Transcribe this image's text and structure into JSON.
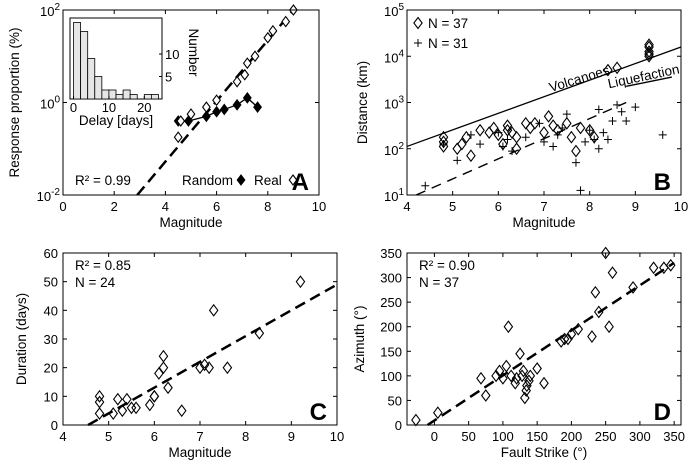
{
  "colors": {
    "ink": "#000000",
    "inset_bar": "#e6e6e6",
    "background": "#ffffff"
  },
  "chart_data": [
    {
      "panel": "A",
      "type": "scatter",
      "xlabel": "Magnitude",
      "ylabel": "Response proportion (%)",
      "xlim": [
        0,
        10
      ],
      "ylim_log10": [
        -2,
        2
      ],
      "yscale": "log",
      "xticks": [
        "0",
        "2",
        "4",
        "6",
        "8",
        "10"
      ],
      "ytick_bases": [
        "10",
        "10",
        "10"
      ],
      "ytick_exps": [
        "-2",
        "0",
        "2"
      ],
      "annotation": "R² = 0.99",
      "legend": [
        {
          "label": "Random",
          "marker": "filled-diamond"
        },
        {
          "label": "Real",
          "marker": "open-diamond"
        }
      ],
      "series": [
        {
          "name": "Real",
          "marker": "open-diamond",
          "points": [
            [
              4.5,
              -0.75
            ],
            [
              4.6,
              -0.4
            ],
            [
              5.0,
              -0.25
            ],
            [
              5.6,
              -0.1
            ],
            [
              6.0,
              0.05
            ],
            [
              6.8,
              0.45
            ],
            [
              7.1,
              0.6
            ],
            [
              7.2,
              0.85
            ],
            [
              7.5,
              1.0
            ],
            [
              8.0,
              1.4
            ],
            [
              8.2,
              1.55
            ],
            [
              8.7,
              1.75
            ],
            [
              9.0,
              2.0
            ]
          ]
        },
        {
          "name": "Random",
          "marker": "filled-diamond",
          "points": [
            [
              4.5,
              -0.4
            ],
            [
              4.9,
              -0.4
            ],
            [
              5.6,
              -0.3
            ],
            [
              6.0,
              -0.2
            ],
            [
              6.3,
              -0.15
            ],
            [
              6.8,
              -0.05
            ],
            [
              7.2,
              0.1
            ],
            [
              7.6,
              -0.1
            ]
          ]
        }
      ],
      "fit_line": [
        [
          2.9,
          -2.0
        ],
        [
          9.0,
          2.0
        ]
      ],
      "inset": {
        "type": "bar",
        "xlabel": "Delay [days]",
        "ylabel": "Number",
        "xlim": [
          -1,
          25
        ],
        "ylim": [
          0,
          18
        ],
        "xticks": [
          "0",
          "10",
          "20"
        ],
        "yticks": [
          "5",
          "10"
        ],
        "bins": [
          0,
          2,
          4,
          6,
          8,
          10,
          12,
          14,
          16,
          18,
          20,
          22
        ],
        "values": [
          17,
          15,
          9,
          5,
          2,
          2,
          1,
          2,
          1,
          0,
          1,
          1
        ]
      }
    },
    {
      "panel": "B",
      "type": "scatter",
      "xlabel": "Magnitude",
      "ylabel": "Distance (km)",
      "xlim": [
        4,
        10
      ],
      "ylim_log10": [
        1,
        5
      ],
      "yscale": "log",
      "xticks": [
        "4",
        "5",
        "6",
        "7",
        "8",
        "9",
        "10"
      ],
      "ytick_bases": [
        "10",
        "10",
        "10",
        "10",
        "10"
      ],
      "ytick_exps": [
        "1",
        "2",
        "3",
        "4",
        "5"
      ],
      "legend": [
        {
          "label": "N = 37",
          "marker": "open-diamond"
        },
        {
          "label": "N = 31",
          "marker": "plus"
        }
      ],
      "annotations": [
        "Volcanoes",
        "Liquefaction"
      ],
      "series": [
        {
          "name": "N = 37",
          "marker": "open-diamond",
          "points": [
            [
              4.8,
              2.05
            ],
            [
              4.8,
              2.15
            ],
            [
              4.8,
              2.25
            ],
            [
              5.1,
              2.0
            ],
            [
              5.2,
              2.1
            ],
            [
              5.3,
              2.25
            ],
            [
              5.4,
              1.85
            ],
            [
              5.6,
              2.4
            ],
            [
              5.8,
              2.35
            ],
            [
              5.9,
              2.45
            ],
            [
              6.0,
              2.3
            ],
            [
              6.1,
              2.1
            ],
            [
              6.2,
              2.4
            ],
            [
              6.2,
              2.5
            ],
            [
              6.3,
              2.35
            ],
            [
              6.4,
              2.0
            ],
            [
              6.4,
              2.25
            ],
            [
              6.6,
              2.55
            ],
            [
              6.7,
              2.45
            ],
            [
              6.8,
              2.55
            ],
            [
              7.0,
              2.35
            ],
            [
              7.1,
              2.7
            ],
            [
              7.2,
              2.5
            ],
            [
              7.3,
              2.4
            ],
            [
              7.5,
              2.55
            ],
            [
              7.6,
              2.25
            ],
            [
              7.7,
              1.95
            ],
            [
              7.8,
              2.45
            ],
            [
              8.0,
              2.4
            ],
            [
              8.1,
              2.25
            ],
            [
              8.4,
              3.7
            ],
            [
              8.6,
              3.75
            ],
            [
              9.3,
              4.0
            ],
            [
              9.3,
              4.1
            ],
            [
              9.3,
              4.2
            ],
            [
              9.3,
              4.25
            ],
            [
              9.3,
              4.05
            ]
          ]
        },
        {
          "name": "N = 31",
          "marker": "plus",
          "points": [
            [
              4.4,
              1.2
            ],
            [
              4.8,
              2.1
            ],
            [
              5.1,
              1.75
            ],
            [
              5.4,
              2.3
            ],
            [
              5.6,
              2.1
            ],
            [
              6.0,
              2.35
            ],
            [
              6.1,
              2.05
            ],
            [
              6.2,
              2.2
            ],
            [
              6.3,
              1.95
            ],
            [
              6.6,
              2.25
            ],
            [
              6.9,
              2.55
            ],
            [
              7.0,
              2.15
            ],
            [
              7.2,
              2.05
            ],
            [
              7.3,
              2.3
            ],
            [
              7.4,
              2.45
            ],
            [
              7.5,
              2.75
            ],
            [
              7.7,
              1.7
            ],
            [
              7.8,
              1.1
            ],
            [
              7.9,
              2.15
            ],
            [
              8.0,
              2.4
            ],
            [
              8.1,
              2.2
            ],
            [
              8.2,
              2.0
            ],
            [
              8.2,
              2.85
            ],
            [
              8.3,
              2.35
            ],
            [
              8.4,
              2.2
            ],
            [
              8.5,
              2.6
            ],
            [
              8.6,
              2.95
            ],
            [
              8.7,
              2.8
            ],
            [
              8.8,
              2.6
            ],
            [
              9.0,
              2.9
            ],
            [
              9.6,
              2.3
            ]
          ]
        }
      ],
      "lines": [
        {
          "label": "Volcanoes",
          "style": "solid",
          "points": [
            [
              4.0,
              2.05
            ],
            [
              10.0,
              4.2
            ]
          ]
        },
        {
          "label": "Liquefaction",
          "style": "solid",
          "points": [
            [
              8.8,
              3.35
            ],
            [
              9.8,
              3.55
            ]
          ]
        },
        {
          "label": "",
          "style": "dashed",
          "points": [
            [
              4.2,
              1.0
            ],
            [
              8.8,
              3.0
            ]
          ]
        }
      ]
    },
    {
      "panel": "C",
      "type": "scatter",
      "xlabel": "Magnitude",
      "ylabel": "Duration (days)",
      "xlim": [
        4,
        10
      ],
      "ylim": [
        0,
        60
      ],
      "xticks": [
        "4",
        "5",
        "6",
        "7",
        "8",
        "9",
        "10"
      ],
      "yticks": [
        "0",
        "10",
        "20",
        "30",
        "40",
        "50",
        "60"
      ],
      "annotation": [
        "R² = 0.85",
        "N = 24"
      ],
      "series": [
        {
          "name": "",
          "marker": "open-diamond",
          "points": [
            [
              4.8,
              4
            ],
            [
              4.8,
              8
            ],
            [
              4.8,
              10
            ],
            [
              5.1,
              4
            ],
            [
              5.2,
              9
            ],
            [
              5.3,
              5
            ],
            [
              5.4,
              9
            ],
            [
              5.6,
              6
            ],
            [
              5.9,
              7
            ],
            [
              6.0,
              10
            ],
            [
              6.1,
              18
            ],
            [
              6.2,
              20
            ],
            [
              6.2,
              24
            ],
            [
              6.3,
              13
            ],
            [
              6.6,
              5
            ],
            [
              7.0,
              20
            ],
            [
              7.1,
              21
            ],
            [
              7.2,
              20
            ],
            [
              7.3,
              40
            ],
            [
              7.6,
              20
            ],
            [
              8.3,
              32
            ],
            [
              9.2,
              50
            ],
            [
              6.0,
              10
            ],
            [
              5.5,
              6
            ]
          ]
        }
      ],
      "fit_line": [
        [
          4.55,
          0
        ],
        [
          10.0,
          49
        ]
      ]
    },
    {
      "panel": "D",
      "type": "scatter",
      "xlabel": "Fault Strike (°)",
      "ylabel": "Azimuth (°)",
      "xlim": [
        -40,
        360
      ],
      "ylim": [
        0,
        350
      ],
      "xticks": [
        "0",
        "50",
        "100",
        "150",
        "200",
        "250",
        "300",
        "350"
      ],
      "yticks": [
        "0",
        "50",
        "100",
        "150",
        "200",
        "250",
        "300",
        "350"
      ],
      "annotation": [
        "R² = 0.90",
        "N = 37"
      ],
      "series": [
        {
          "name": "",
          "marker": "open-diamond",
          "points": [
            [
              -27,
              10
            ],
            [
              5,
              25
            ],
            [
              68,
              95
            ],
            [
              75,
              60
            ],
            [
              90,
              100
            ],
            [
              95,
              110
            ],
            [
              100,
              95
            ],
            [
              105,
              120
            ],
            [
              108,
              200
            ],
            [
              112,
              100
            ],
            [
              118,
              85
            ],
            [
              120,
              95
            ],
            [
              125,
              145
            ],
            [
              128,
              100
            ],
            [
              130,
              110
            ],
            [
              132,
              55
            ],
            [
              134,
              70
            ],
            [
              135,
              80
            ],
            [
              138,
              90
            ],
            [
              140,
              100
            ],
            [
              150,
              115
            ],
            [
              160,
              85
            ],
            [
              185,
              170
            ],
            [
              190,
              175
            ],
            [
              195,
              175
            ],
            [
              200,
              185
            ],
            [
              210,
              195
            ],
            [
              230,
              180
            ],
            [
              235,
              270
            ],
            [
              240,
              230
            ],
            [
              250,
              350
            ],
            [
              255,
              200
            ],
            [
              260,
              310
            ],
            [
              290,
              280
            ],
            [
              320,
              320
            ],
            [
              335,
              320
            ],
            [
              345,
              325
            ]
          ]
        }
      ],
      "fit_line": [
        [
          -10,
          0
        ],
        [
          350,
          330
        ]
      ]
    }
  ]
}
